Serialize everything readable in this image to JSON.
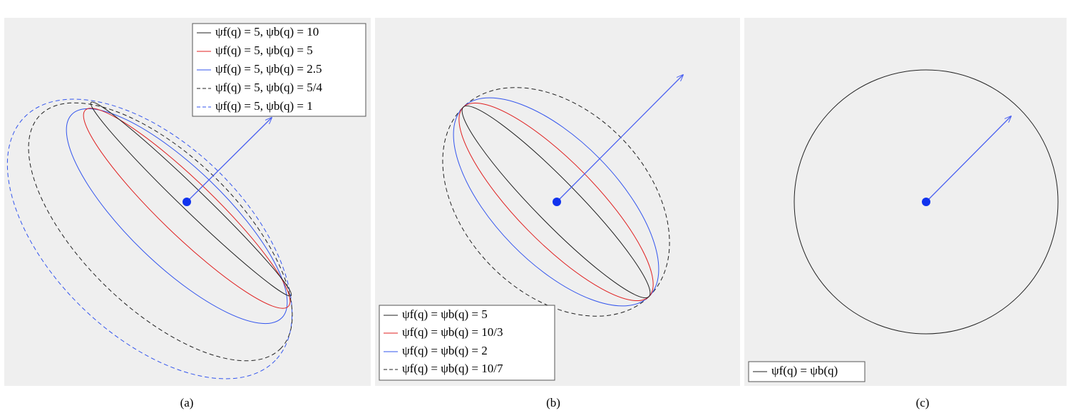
{
  "panels": [
    {
      "caption": "(a)",
      "legend": [
        "ψf(q) = 5, ψb(q) = 10",
        "ψf(q) = 5, ψb(q) = 5",
        "ψf(q) = 5, ψb(q) = 2.5",
        "ψf(q) = 5, ψb(q) = 5/4",
        "ψf(q) = 5, ψb(q) = 1"
      ]
    },
    {
      "caption": "(b)",
      "legend": [
        "ψf(q) = ψb(q) = 5",
        "ψf(q) = ψb(q) = 10/3",
        "ψf(q) = ψb(q) = 2",
        "ψf(q) = ψb(q) = 10/7"
      ]
    },
    {
      "caption": "(c)",
      "legend": [
        "ψf(q) = ψb(q)"
      ]
    }
  ]
}
